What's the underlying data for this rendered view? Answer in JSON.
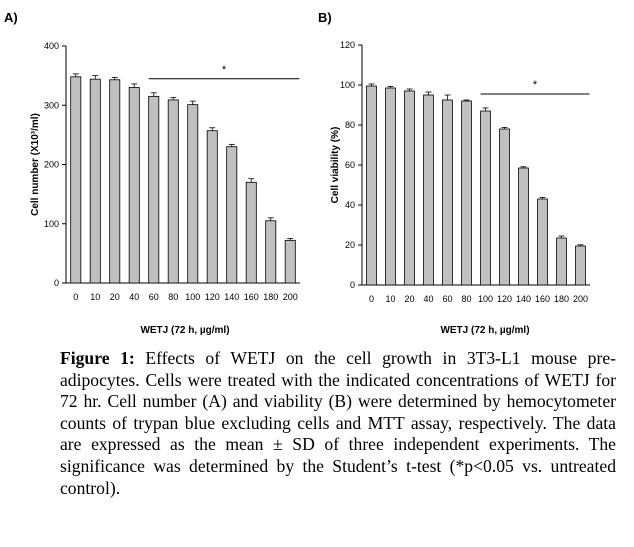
{
  "chart_data": [
    {
      "type": "bar",
      "panel_label": "A)",
      "categories": [
        "0",
        "10",
        "20",
        "40",
        "60",
        "80",
        "100",
        "120",
        "140",
        "160",
        "180",
        "200"
      ],
      "values": [
        348,
        344,
        343,
        330,
        315,
        309,
        301,
        257,
        230,
        170,
        105,
        72
      ],
      "errors": [
        5,
        6,
        4,
        6,
        6,
        4,
        6,
        5,
        4,
        6,
        5,
        3
      ],
      "xlabel": "WETJ (72 h, µg/ml)",
      "ylabel": "Cell number (X10³/ml)",
      "ylim": [
        0,
        400
      ],
      "yticks": [
        0,
        100,
        200,
        300,
        400
      ],
      "significance": {
        "marker": "*",
        "from_category": "60",
        "to_category": "200"
      },
      "bar_color": "#c0c0c0",
      "grid": false
    },
    {
      "type": "bar",
      "panel_label": "B)",
      "categories": [
        "0",
        "10",
        "20",
        "40",
        "60",
        "80",
        "100",
        "120",
        "140",
        "160",
        "180",
        "200"
      ],
      "values": [
        99.5,
        98.5,
        97,
        95,
        92.5,
        92,
        87,
        78,
        58.5,
        43,
        23.5,
        19.5
      ],
      "errors": [
        1,
        0.8,
        1,
        1.5,
        2.5,
        0.5,
        1.5,
        0.8,
        0.6,
        0.8,
        1,
        0.6
      ],
      "xlabel": "WETJ (72 h, µg/ml)",
      "ylabel": "Cell viability (%)",
      "ylim": [
        0,
        120
      ],
      "yticks": [
        0,
        20,
        40,
        60,
        80,
        100,
        120
      ],
      "significance": {
        "marker": "*",
        "from_category": "100",
        "to_category": "200"
      },
      "bar_color": "#c0c0c0",
      "grid": false
    }
  ],
  "caption": {
    "label": "Figure 1:",
    "text": " Effects of WETJ on the cell growth in 3T3-L1 mouse pre-adipocytes. Cells were treated with the indicated concentrations of WETJ for 72 hr. Cell number (A) and viability (B) were determined by hemocytometer counts of trypan blue excluding cells and MTT assay, respectively. The data are expressed as the mean ± SD of three independent experiments. The significance was determined by the Student’s t-test (*p<0.05 vs. untreated control)."
  }
}
